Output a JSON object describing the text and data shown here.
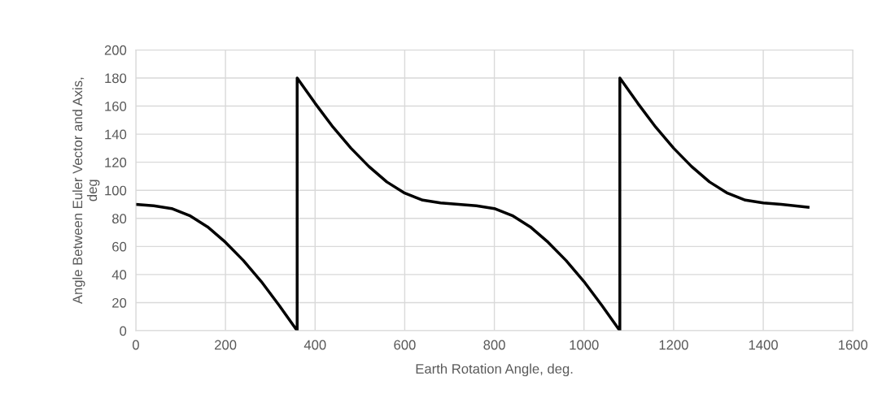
{
  "chart_data": {
    "type": "line",
    "xlabel": "Earth Rotation Angle, deg.",
    "ylabel": "Angle Between Euler Vector and Axis,\ndeg",
    "series": [
      {
        "color": "#000000",
        "x": [
          0,
          40,
          80,
          120,
          160,
          200,
          240,
          280,
          320,
          360,
          360,
          400,
          440,
          480,
          520,
          560,
          600,
          640,
          680,
          720,
          760,
          800,
          840,
          880,
          920,
          960,
          1000,
          1040,
          1080,
          1080,
          1120,
          1160,
          1200,
          1240,
          1280,
          1320,
          1360,
          1400,
          1440,
          1500
        ],
        "values": [
          90,
          89,
          87,
          82,
          74,
          63,
          50,
          35,
          18,
          0,
          180,
          162,
          145,
          130,
          117,
          106,
          98,
          93,
          91,
          90,
          89,
          87,
          82,
          74,
          63,
          50,
          35,
          18,
          0,
          180,
          162,
          145,
          130,
          117,
          106,
          98,
          93,
          91,
          90,
          88
        ]
      }
    ],
    "xlim": [
      0,
      1600
    ],
    "xticks": [
      0,
      200,
      400,
      600,
      800,
      1000,
      1200,
      1400,
      1600
    ],
    "ylim": [
      0,
      200
    ],
    "yticks": [
      0,
      20,
      40,
      60,
      80,
      100,
      120,
      140,
      160,
      180,
      200
    ],
    "grid": true,
    "marker": "none",
    "line_style": "solid"
  }
}
